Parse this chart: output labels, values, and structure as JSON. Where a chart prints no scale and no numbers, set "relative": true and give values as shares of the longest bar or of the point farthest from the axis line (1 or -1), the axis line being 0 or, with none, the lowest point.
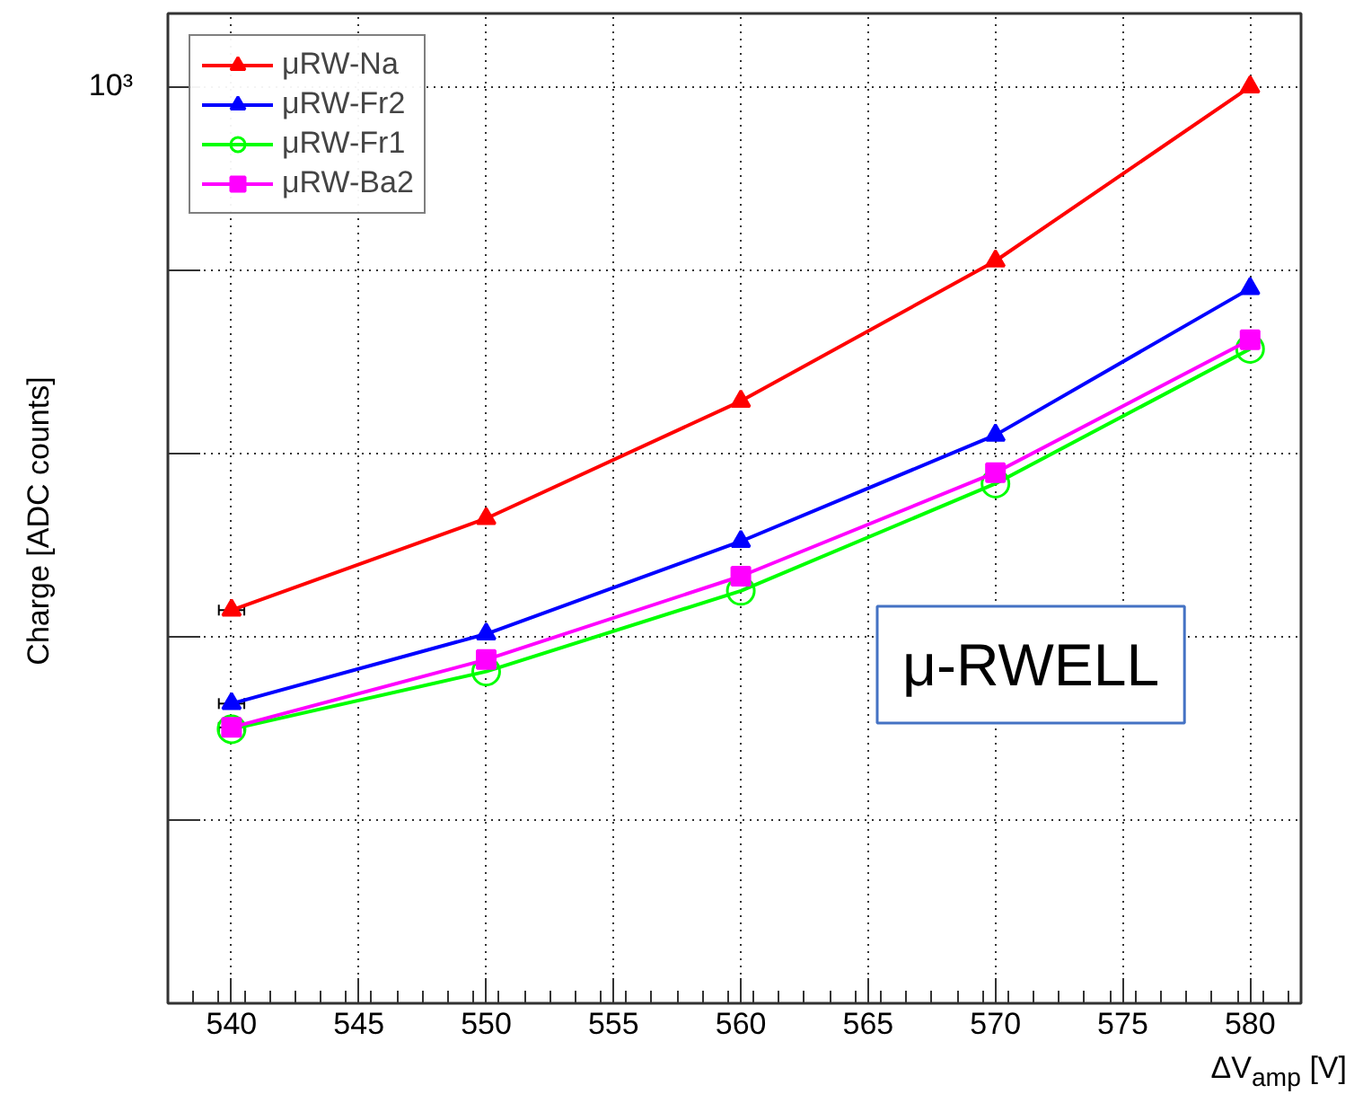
{
  "chart_data": {
    "type": "line",
    "xlabel": "ΔV$_{amp}$ [V]",
    "ylabel": "Charge [ADC counts]",
    "x": [
      540,
      550,
      560,
      570,
      580
    ],
    "xlim": [
      537.5,
      582
    ],
    "xticks": [
      540,
      545,
      550,
      555,
      560,
      565,
      570,
      575,
      580
    ],
    "relative": true,
    "grid": true,
    "legend": "top left",
    "line_style": "solid",
    "series": [
      {
        "name": "μRW-Na",
        "color": "#ff0000",
        "marker": "triangle",
        "values": [
          0.429,
          0.529,
          0.657,
          0.81,
          1
        ],
        "xerrors": [
          0.5,
          null,
          null,
          null,
          null
        ]
      },
      {
        "name": "μRW-Fr2",
        "color": "#0000ff",
        "marker": "triangle",
        "values": [
          0.327,
          0.403,
          0.504,
          0.62,
          0.78
        ],
        "xerrors": [
          0.5,
          null,
          null,
          null,
          null
        ]
      },
      {
        "name": "μRW-Fr1",
        "color": "#00ff00",
        "marker": "circle",
        "values": [
          0.299,
          0.362,
          0.45,
          0.567,
          0.714
        ]
      },
      {
        "name": "μRW-Ba2",
        "color": "#ff00ff",
        "marker": "square",
        "values": [
          0.301,
          0.375,
          0.466,
          0.579,
          0.724
        ],
        "xerrors": [
          0.5,
          null,
          null,
          null,
          null
        ]
      }
    ],
    "annotations": [
      "10³",
      "μ-RWELL"
    ]
  }
}
